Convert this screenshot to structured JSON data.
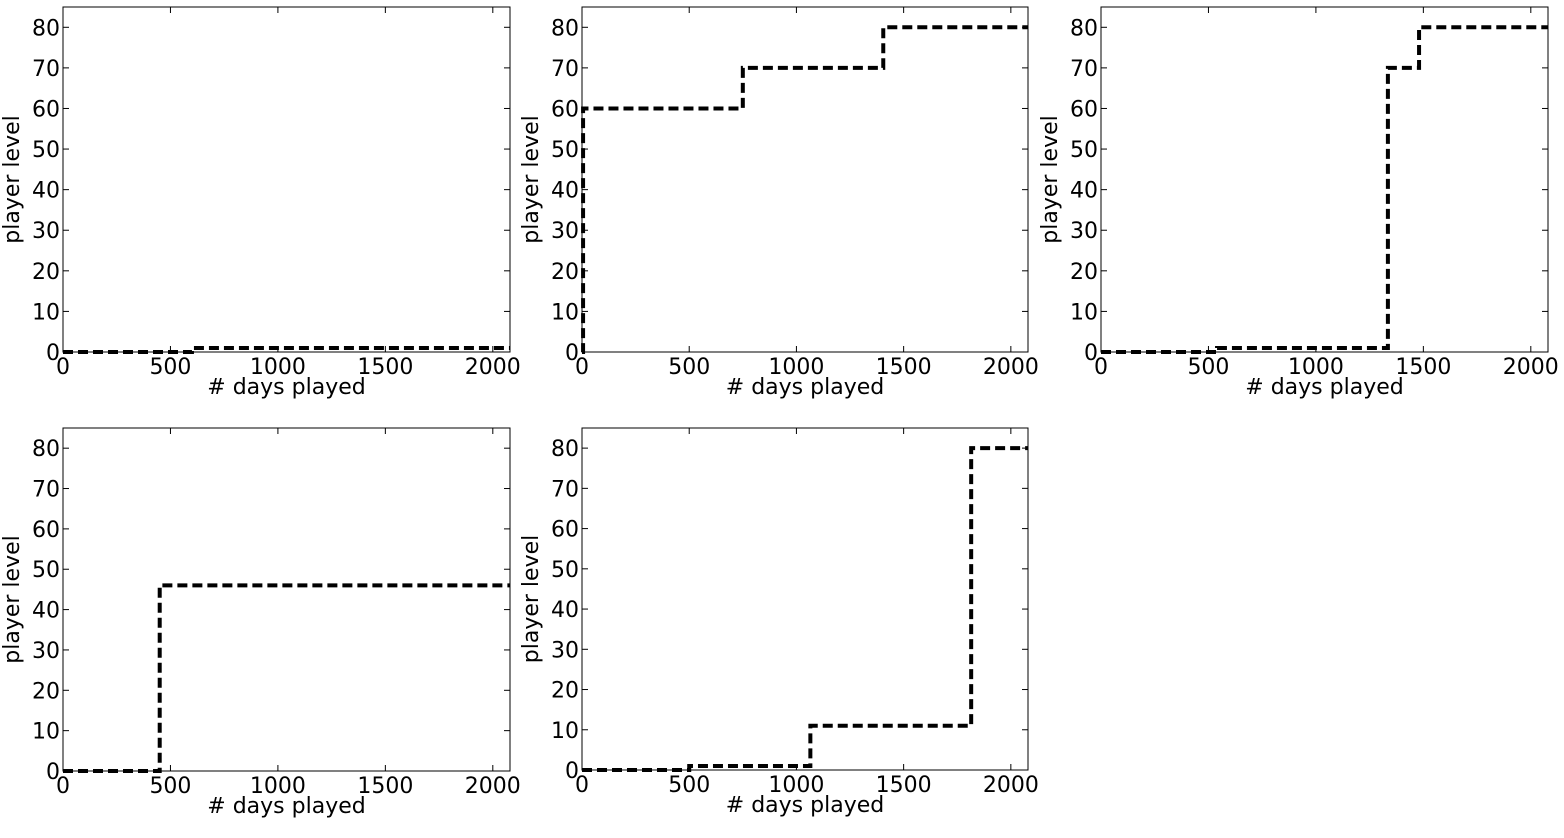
{
  "figure": {
    "background": "#ffffff",
    "line_color": "#000000"
  },
  "chart_data": [
    {
      "type": "line",
      "line_style": "dashed",
      "step": "post",
      "xlabel": "# days played",
      "ylabel": "player level",
      "xlim": [
        0,
        2080
      ],
      "ylim": [
        0,
        85
      ],
      "xticks": [
        0,
        500,
        1000,
        1500,
        2000
      ],
      "yticks": [
        0,
        10,
        20,
        30,
        40,
        50,
        60,
        70,
        80
      ],
      "grid": false,
      "series": [
        {
          "x": [
            0,
            600,
            2080
          ],
          "y": [
            0,
            1,
            1
          ]
        }
      ]
    },
    {
      "type": "line",
      "line_style": "dashed",
      "step": "post",
      "xlabel": "# days played",
      "ylabel": "player level",
      "xlim": [
        0,
        2080
      ],
      "ylim": [
        0,
        85
      ],
      "xticks": [
        0,
        500,
        1000,
        1500,
        2000
      ],
      "yticks": [
        0,
        10,
        20,
        30,
        40,
        50,
        60,
        70,
        80
      ],
      "grid": false,
      "series": [
        {
          "x": [
            0,
            5,
            750,
            1405,
            2080
          ],
          "y": [
            0,
            60,
            70,
            80,
            80
          ]
        }
      ]
    },
    {
      "type": "line",
      "line_style": "dashed",
      "step": "post",
      "xlabel": "# days played",
      "ylabel": "player level",
      "xlim": [
        0,
        2080
      ],
      "ylim": [
        0,
        85
      ],
      "xticks": [
        0,
        500,
        1000,
        1500,
        2000
      ],
      "yticks": [
        0,
        10,
        20,
        30,
        40,
        50,
        60,
        70,
        80
      ],
      "grid": false,
      "series": [
        {
          "x": [
            0,
            540,
            1335,
            1480,
            2080
          ],
          "y": [
            0,
            1,
            70,
            80,
            80
          ]
        }
      ]
    },
    {
      "type": "line",
      "line_style": "dashed",
      "step": "post",
      "xlabel": "# days played",
      "ylabel": "player level",
      "xlim": [
        0,
        2080
      ],
      "ylim": [
        0,
        85
      ],
      "xticks": [
        0,
        500,
        1000,
        1500,
        2000
      ],
      "yticks": [
        0,
        10,
        20,
        30,
        40,
        50,
        60,
        70,
        80
      ],
      "grid": false,
      "series": [
        {
          "x": [
            0,
            450,
            2080
          ],
          "y": [
            0,
            46,
            46
          ]
        }
      ]
    },
    {
      "type": "line",
      "line_style": "dashed",
      "step": "post",
      "xlabel": "# days played",
      "ylabel": "player level",
      "xlim": [
        0,
        2080
      ],
      "ylim": [
        0,
        85
      ],
      "xticks": [
        0,
        500,
        1000,
        1500,
        2000
      ],
      "yticks": [
        0,
        10,
        20,
        30,
        40,
        50,
        60,
        70,
        80
      ],
      "grid": false,
      "series": [
        {
          "x": [
            0,
            500,
            1065,
            1815,
            2080
          ],
          "y": [
            0,
            1,
            11,
            80,
            80
          ]
        }
      ]
    }
  ]
}
